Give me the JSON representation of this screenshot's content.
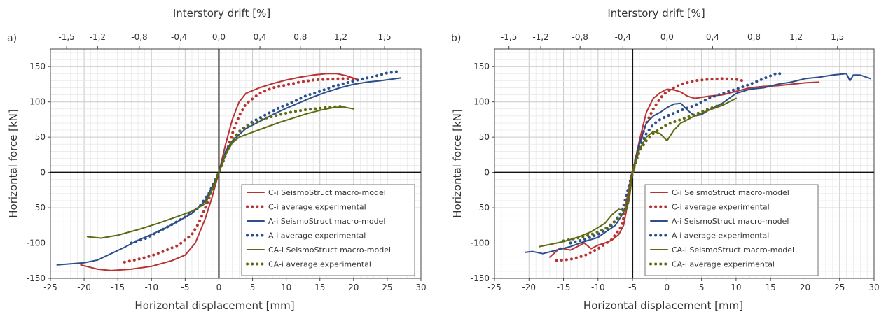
{
  "figure": {
    "colors": {
      "C": "#b83232",
      "A": "#2a4f8c",
      "CA": "#5d6a12"
    }
  },
  "chart_data": [
    {
      "panel": "a)",
      "type": "line",
      "xlabel": "Horizontal displacement [mm]",
      "ylabel": "Horizontal force [kN]",
      "x2label": "Interstory drift [%]",
      "xlim": [
        -25,
        30
      ],
      "ylim": [
        -150,
        175
      ],
      "xticks": [
        -25,
        -20,
        -15,
        -10,
        -5,
        0,
        5,
        10,
        15,
        20,
        25,
        30
      ],
      "yticks": [
        -150,
        -100,
        -50,
        0,
        50,
        100,
        150
      ],
      "x2ticks": [
        {
          "label": "-1,5",
          "x": -22.6
        },
        {
          "label": "-1,2",
          "x": -18.0
        },
        {
          "label": "-0,8",
          "x": -11.8
        },
        {
          "label": "-0,4",
          "x": -5.9
        },
        {
          "label": "0,0",
          "x": 0.0
        },
        {
          "label": "0,4",
          "x": 6.1
        },
        {
          "label": "0,8",
          "x": 12.1
        },
        {
          "label": "1,2",
          "x": 18.1
        },
        {
          "label": "1,5",
          "x": 24.6
        }
      ],
      "grid": true,
      "legend_position": "bottom-right",
      "series": [
        {
          "name": "C-i SeismoStruct macro-model",
          "group": "C",
          "style": "solid",
          "x": [
            -20.5,
            -18,
            -16,
            -13,
            -10,
            -7,
            -5,
            -3.5,
            -2,
            -1,
            0,
            1,
            2,
            3,
            4,
            6,
            8,
            10,
            12,
            14,
            16,
            17.5,
            19,
            20.5
          ],
          "y": [
            -131,
            -137,
            -139,
            -137,
            -133,
            -125,
            -117,
            -100,
            -65,
            -35,
            0,
            40,
            75,
            100,
            112,
            120,
            126,
            131,
            135,
            138,
            140,
            140,
            137,
            132
          ]
        },
        {
          "name": "C-i average experimental",
          "group": "C",
          "style": "dotted",
          "x": [
            -14,
            -12,
            -10,
            -8,
            -6,
            -4,
            -3,
            -2,
            -1,
            0,
            1,
            2,
            3,
            4,
            6,
            8,
            10,
            12,
            14,
            16,
            18,
            20
          ],
          "y": [
            -127,
            -123,
            -118,
            -111,
            -103,
            -88,
            -72,
            -50,
            -25,
            0,
            25,
            55,
            80,
            97,
            112,
            120,
            124,
            128,
            131,
            132,
            133,
            133
          ]
        },
        {
          "name": "A-i SeismoStruct macro-model",
          "group": "A",
          "style": "solid",
          "x": [
            -24,
            -20,
            -18,
            -16,
            -14,
            -12,
            -10,
            -8,
            -6,
            -4,
            -2,
            0,
            1,
            2,
            4,
            6,
            8,
            10,
            12,
            14,
            16,
            18,
            20,
            22,
            24,
            27
          ],
          "y": [
            -131,
            -128,
            -124,
            -115,
            -106,
            -96,
            -88,
            -79,
            -69,
            -58,
            -40,
            0,
            30,
            45,
            62,
            72,
            82,
            91,
            99,
            107,
            114,
            120,
            125,
            128,
            130,
            134
          ]
        },
        {
          "name": "A-i average experimental",
          "group": "A",
          "style": "dotted",
          "x": [
            -13,
            -11,
            -9,
            -7,
            -5,
            -3,
            -1.5,
            0,
            1.5,
            3,
            5,
            7,
            9,
            11,
            13,
            15,
            17,
            19,
            21,
            23,
            25,
            26.5
          ],
          "y": [
            -100,
            -94,
            -84,
            -74,
            -63,
            -50,
            -30,
            0,
            38,
            58,
            72,
            82,
            92,
            100,
            109,
            115,
            122,
            127,
            132,
            136,
            141,
            143
          ]
        },
        {
          "name": "CA-i SeismoStruct macro-model",
          "group": "CA",
          "style": "solid",
          "x": [
            -19.5,
            -17.5,
            -15,
            -12,
            -9,
            -6,
            -4,
            -2,
            -1,
            0,
            1,
            2,
            3,
            5,
            7,
            9,
            11,
            13,
            15,
            17,
            18.5,
            20
          ],
          "y": [
            -91,
            -93,
            -89,
            -81,
            -72,
            -62,
            -55,
            -44,
            -25,
            0,
            25,
            42,
            50,
            57,
            64,
            71,
            77,
            83,
            88,
            92,
            93,
            90
          ]
        },
        {
          "name": "CA-i average experimental",
          "group": "CA",
          "style": "dotted",
          "x": [
            -2,
            -1,
            0,
            1,
            2,
            3,
            5,
            7,
            9,
            11,
            13,
            15,
            17,
            18.5
          ],
          "y": [
            -42,
            -25,
            0,
            25,
            45,
            58,
            70,
            77,
            82,
            86,
            89,
            91,
            93,
            94
          ]
        }
      ]
    },
    {
      "panel": "b)",
      "type": "line",
      "xlabel": "Horizontal displacement [mm]",
      "ylabel": "Horizontal force [kN]",
      "x2label": "Interstory drift [%]",
      "xlim": [
        -25,
        30
      ],
      "ylim": [
        -150,
        175
      ],
      "xticks": [
        -25,
        -20,
        -15,
        -10,
        -5,
        0,
        5,
        10,
        15,
        20,
        25,
        30
      ],
      "yticks": [
        -150,
        -100,
        -50,
        0,
        50,
        100,
        150
      ],
      "x2ticks": [
        {
          "label": "-1,5",
          "x": -22.9
        },
        {
          "label": "-1,2",
          "x": -18.3
        },
        {
          "label": "-0,8",
          "x": -12.6
        },
        {
          "label": "-0,4",
          "x": -6.4
        },
        {
          "label": "0,0",
          "x": 0.0
        },
        {
          "label": "0,4",
          "x": 6.6
        },
        {
          "label": "0,8",
          "x": 12.6
        },
        {
          "label": "1,2",
          "x": 18.7
        },
        {
          "label": "1,5",
          "x": 24.7
        }
      ],
      "grid": true,
      "legend_position": "bottom-right",
      "series": [
        {
          "name": "C-i SeismoStruct macro-model",
          "group": "C",
          "style": "solid",
          "x": [
            -17,
            -15.5,
            -14,
            -13,
            -12,
            -11,
            -10,
            -9,
            -8,
            -7,
            -6.3,
            -5.8,
            -5,
            -4,
            -3,
            -2,
            -1,
            0,
            1,
            2,
            3,
            4,
            6,
            8,
            10,
            12,
            14,
            16,
            18,
            20,
            22
          ],
          "y": [
            -120,
            -107,
            -110,
            -105,
            -100,
            -108,
            -103,
            -100,
            -96,
            -88,
            -75,
            -50,
            0,
            45,
            85,
            105,
            113,
            118,
            117,
            114,
            108,
            105,
            108,
            110,
            115,
            120,
            122,
            123,
            125,
            127,
            128
          ]
        },
        {
          "name": "C-i average experimental",
          "group": "C",
          "style": "dotted",
          "x": [
            -16,
            -14,
            -12,
            -10,
            -8,
            -6.5,
            -5,
            -4,
            -3,
            -2,
            -1,
            0,
            2,
            4,
            6,
            8,
            10,
            11
          ],
          "y": [
            -125,
            -123,
            -118,
            -108,
            -95,
            -75,
            0,
            40,
            70,
            90,
            105,
            115,
            125,
            130,
            132,
            133,
            132,
            130
          ]
        },
        {
          "name": "A-i SeismoStruct macro-model",
          "group": "A",
          "style": "solid",
          "x": [
            -20.5,
            -19.5,
            -18,
            -16,
            -14,
            -12,
            -10,
            -9,
            -7.5,
            -6.5,
            -5.5,
            -5,
            -4,
            -3,
            -2,
            -1,
            0,
            1,
            2,
            3,
            4,
            5,
            6,
            8,
            10,
            12,
            14,
            16,
            18,
            20,
            22,
            24,
            26,
            26.5,
            27,
            28,
            29.5
          ],
          "y": [
            -113,
            -112,
            -115,
            -110,
            -105,
            -98,
            -92,
            -85,
            -75,
            -60,
            -40,
            0,
            40,
            70,
            80,
            85,
            92,
            97,
            98,
            88,
            80,
            82,
            88,
            98,
            112,
            118,
            120,
            125,
            128,
            133,
            135,
            138,
            140,
            130,
            138,
            138,
            133
          ]
        },
        {
          "name": "A-i average experimental",
          "group": "A",
          "style": "dotted",
          "x": [
            -14,
            -12,
            -10,
            -8,
            -6.5,
            -5,
            -4,
            -3,
            -2,
            -1,
            0,
            2,
            4,
            6,
            8,
            10,
            12,
            14,
            16,
            17
          ],
          "y": [
            -100,
            -95,
            -88,
            -75,
            -55,
            0,
            35,
            55,
            68,
            75,
            80,
            88,
            95,
            105,
            112,
            118,
            125,
            133,
            141,
            138
          ]
        },
        {
          "name": "CA-i SeismoStruct macro-model",
          "group": "CA",
          "style": "solid",
          "x": [
            -18.5,
            -17,
            -15,
            -13,
            -11,
            -9,
            -8,
            -7,
            -6,
            -5.5,
            -5,
            -4,
            -3,
            -2,
            -1,
            0,
            1,
            2,
            4,
            6,
            8,
            10
          ],
          "y": [
            -105,
            -102,
            -98,
            -92,
            -84,
            -72,
            -60,
            -52,
            -55,
            -40,
            0,
            32,
            50,
            58,
            55,
            45,
            60,
            70,
            80,
            88,
            95,
            105
          ]
        },
        {
          "name": "CA-i average experimental",
          "group": "CA",
          "style": "dotted",
          "x": [
            -15,
            -13,
            -11,
            -9,
            -7,
            -6,
            -5,
            -4,
            -3,
            -2,
            -1,
            0,
            2,
            4,
            6,
            8
          ],
          "y": [
            -97,
            -93,
            -88,
            -80,
            -65,
            -50,
            0,
            30,
            45,
            55,
            62,
            68,
            75,
            82,
            90,
            97
          ]
        }
      ]
    }
  ]
}
